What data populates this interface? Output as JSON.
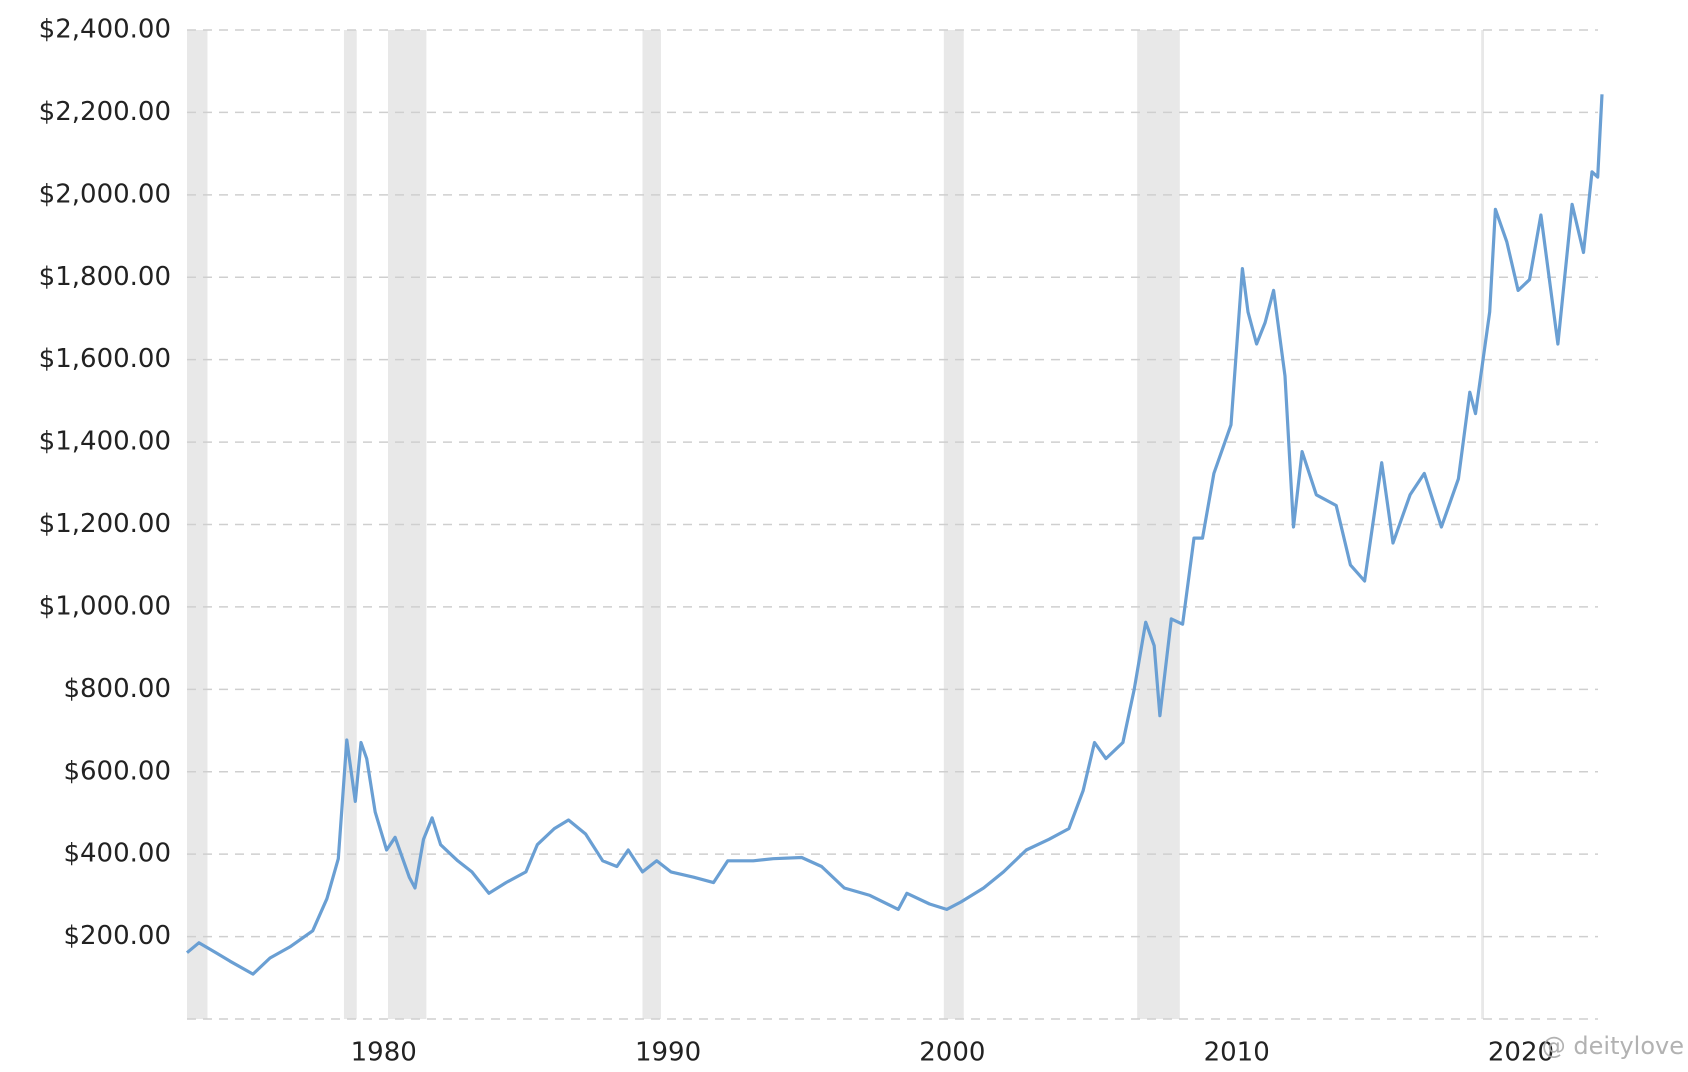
{
  "chart_data": {
    "type": "line",
    "x": [
      1973.08,
      1973.5,
      1974.1,
      1974.6,
      1975.4,
      1976.0,
      1976.7,
      1977.5,
      1978.0,
      1978.4,
      1978.7,
      1979.0,
      1979.2,
      1979.4,
      1979.7,
      1980.1,
      1980.4,
      1980.9,
      1981.1,
      1981.4,
      1981.7,
      1982.0,
      1982.6,
      1983.1,
      1983.7,
      1984.3,
      1985.0,
      1985.4,
      1986.0,
      1986.5,
      1987.1,
      1987.7,
      1988.2,
      1988.6,
      1989.1,
      1989.6,
      1990.1,
      1990.9,
      1991.6,
      1992.1,
      1993.0,
      1993.7,
      1994.7,
      1995.4,
      1996.2,
      1997.1,
      1998.1,
      1998.4,
      1999.2,
      1999.8,
      2000.3,
      2001.1,
      2001.8,
      2002.6,
      2003.4,
      2004.1,
      2004.6,
      2005.0,
      2005.4,
      2006.0,
      2006.4,
      2006.8,
      2007.1,
      2007.3,
      2007.7,
      2008.1,
      2008.5,
      2008.8,
      2009.2,
      2009.8,
      2010.2,
      2010.4,
      2010.7,
      2011.0,
      2011.3,
      2011.7,
      2012.0,
      2012.3,
      2012.8,
      2013.5,
      2014.0,
      2014.5,
      2015.1,
      2015.5,
      2016.1,
      2016.6,
      2017.2,
      2017.8,
      2018.2,
      2018.4,
      2018.9,
      2019.1,
      2019.5,
      2019.9,
      2020.3,
      2020.7,
      2021.3,
      2021.8,
      2022.2,
      2022.5,
      2022.7,
      2022.85
    ],
    "values": [
      161,
      185,
      161,
      140,
      109,
      148,
      175,
      214,
      292,
      389,
      677,
      528,
      671,
      632,
      502,
      410,
      441,
      344,
      318,
      436,
      488,
      423,
      384,
      357,
      305,
      331,
      357,
      423,
      462,
      483,
      449,
      384,
      370,
      410,
      357,
      384,
      357,
      344,
      331,
      384,
      384,
      389,
      392,
      370,
      318,
      300,
      266,
      305,
      279,
      266,
      284,
      318,
      357,
      410,
      436,
      462,
      554,
      671,
      632,
      671,
      801,
      963,
      906,
      736,
      971,
      958,
      1167,
      1167,
      1324,
      1442,
      1821,
      1716,
      1638,
      1690,
      1768,
      1560,
      1194,
      1377,
      1272,
      1246,
      1102,
      1063,
      1350,
      1155,
      1272,
      1324,
      1194,
      1311,
      1521,
      1469,
      1716,
      1965,
      1886,
      1768,
      1794,
      1951,
      1638,
      1977,
      1860,
      2056,
      2043,
      2244
    ],
    "color": "#6a9fd3",
    "recessions": [
      [
        1973.08,
        1973.8
      ],
      [
        1978.6,
        1979.05
      ],
      [
        1980.15,
        1981.5
      ],
      [
        1989.1,
        1989.75
      ],
      [
        1999.7,
        2000.4
      ],
      [
        2006.5,
        2008.0
      ],
      [
        2018.6,
        2018.7
      ]
    ],
    "xlim": [
      1973.08,
      2022.85
    ],
    "xticks": [
      1980,
      1990,
      2000,
      2010,
      2020
    ],
    "ylim": [
      0,
      2400
    ],
    "yticks": [
      {
        "value": 0,
        "label": ""
      },
      {
        "value": 200,
        "label": "$200.00"
      },
      {
        "value": 400,
        "label": "$400.00"
      },
      {
        "value": 600,
        "label": "$600.00"
      },
      {
        "value": 800,
        "label": "$800.00"
      },
      {
        "value": 1000,
        "label": "$1,000.00"
      },
      {
        "value": 1200,
        "label": "$1,200.00"
      },
      {
        "value": 1400,
        "label": "$1,400.00"
      },
      {
        "value": 1600,
        "label": "$1,600.00"
      },
      {
        "value": 1800,
        "label": "$1,800.00"
      },
      {
        "value": 2000,
        "label": "$2,000.00"
      },
      {
        "value": 2200,
        "label": "$2,200.00"
      },
      {
        "value": 2400,
        "label": "$2,400.00"
      }
    ],
    "grid": true,
    "watermark": "@ deitylove"
  }
}
